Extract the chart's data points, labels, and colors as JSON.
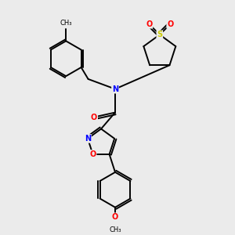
{
  "background_color": "#ebebeb",
  "bond_color": "#000000",
  "atom_colors": {
    "N": "#0000ff",
    "O": "#ff0000",
    "S": "#cccc00",
    "C": "#000000"
  },
  "lw": 1.4,
  "fs": 7.0
}
